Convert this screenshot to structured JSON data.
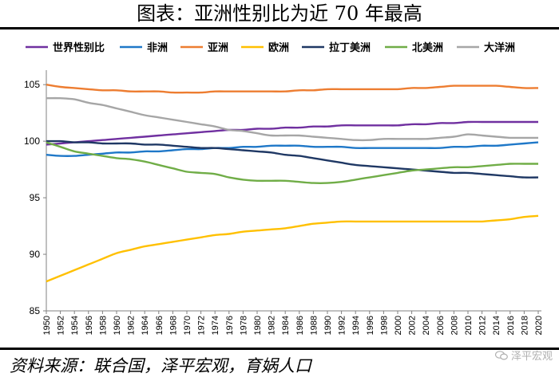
{
  "header": {
    "title": "图表：亚洲性别比为近 70 年最高"
  },
  "footer": {
    "source": "资料来源：联合国，泽平宏观，育娲人口",
    "watermark": "泽平宏观"
  },
  "chart_data": {
    "type": "line",
    "title": "图表：亚洲性别比为近 70 年最高",
    "xlabel": "",
    "ylabel": "",
    "ylim": [
      85,
      106
    ],
    "yticks": [
      85,
      90,
      95,
      100,
      105
    ],
    "x": [
      1950,
      1952,
      1954,
      1956,
      1958,
      1960,
      1962,
      1964,
      1966,
      1968,
      1970,
      1972,
      1974,
      1976,
      1978,
      1980,
      1982,
      1984,
      1986,
      1988,
      1990,
      1992,
      1994,
      1996,
      1998,
      2000,
      2002,
      2004,
      2006,
      2008,
      2010,
      2012,
      2014,
      2016,
      2018,
      2020
    ],
    "legend_position": "top",
    "grid": false,
    "series": [
      {
        "name": "世界性别比",
        "color": "#7030a0",
        "values": [
          99.7,
          99.8,
          99.9,
          100.0,
          100.1,
          100.2,
          100.3,
          100.4,
          100.5,
          100.6,
          100.7,
          100.8,
          100.9,
          101.0,
          101.0,
          101.1,
          101.1,
          101.2,
          101.2,
          101.3,
          101.3,
          101.4,
          101.4,
          101.4,
          101.4,
          101.4,
          101.5,
          101.5,
          101.6,
          101.6,
          101.7,
          101.7,
          101.7,
          101.7,
          101.7,
          101.7
        ]
      },
      {
        "name": "非洲",
        "color": "#1f78c8",
        "values": [
          98.8,
          98.7,
          98.7,
          98.8,
          98.9,
          99.0,
          99.0,
          99.1,
          99.1,
          99.2,
          99.3,
          99.3,
          99.4,
          99.4,
          99.5,
          99.5,
          99.6,
          99.6,
          99.6,
          99.5,
          99.5,
          99.5,
          99.4,
          99.4,
          99.4,
          99.4,
          99.4,
          99.4,
          99.4,
          99.5,
          99.5,
          99.6,
          99.6,
          99.7,
          99.8,
          99.9
        ]
      },
      {
        "name": "亚洲",
        "color": "#ed7d31",
        "values": [
          105.0,
          104.8,
          104.7,
          104.6,
          104.5,
          104.5,
          104.4,
          104.4,
          104.4,
          104.3,
          104.3,
          104.3,
          104.4,
          104.4,
          104.4,
          104.4,
          104.4,
          104.4,
          104.5,
          104.5,
          104.6,
          104.6,
          104.6,
          104.6,
          104.6,
          104.6,
          104.7,
          104.7,
          104.8,
          104.9,
          104.9,
          104.9,
          104.9,
          104.8,
          104.7,
          104.7
        ]
      },
      {
        "name": "欧洲",
        "color": "#ffc000",
        "values": [
          87.6,
          88.1,
          88.6,
          89.1,
          89.6,
          90.1,
          90.4,
          90.7,
          90.9,
          91.1,
          91.3,
          91.5,
          91.7,
          91.8,
          92.0,
          92.1,
          92.2,
          92.3,
          92.5,
          92.7,
          92.8,
          92.9,
          92.9,
          92.9,
          92.9,
          92.9,
          92.9,
          92.9,
          92.9,
          92.9,
          92.9,
          92.9,
          93.0,
          93.1,
          93.3,
          93.4
        ]
      },
      {
        "name": "拉丁美洲",
        "color": "#1f3864",
        "values": [
          100.0,
          100.0,
          99.9,
          99.9,
          99.8,
          99.8,
          99.8,
          99.7,
          99.7,
          99.6,
          99.5,
          99.4,
          99.4,
          99.3,
          99.2,
          99.1,
          99.0,
          98.8,
          98.7,
          98.5,
          98.3,
          98.1,
          97.9,
          97.8,
          97.7,
          97.6,
          97.5,
          97.4,
          97.3,
          97.2,
          97.2,
          97.1,
          97.0,
          96.9,
          96.8,
          96.8
        ]
      },
      {
        "name": "北美洲",
        "color": "#70ad47",
        "values": [
          99.9,
          99.5,
          99.1,
          98.9,
          98.7,
          98.5,
          98.4,
          98.2,
          97.9,
          97.6,
          97.3,
          97.2,
          97.1,
          96.8,
          96.6,
          96.5,
          96.5,
          96.5,
          96.4,
          96.3,
          96.3,
          96.4,
          96.6,
          96.8,
          97.0,
          97.2,
          97.4,
          97.5,
          97.6,
          97.7,
          97.7,
          97.8,
          97.9,
          98.0,
          98.0,
          98.0
        ]
      },
      {
        "name": "大洋洲",
        "color": "#a6a6a6",
        "values": [
          103.8,
          103.8,
          103.7,
          103.4,
          103.2,
          102.9,
          102.6,
          102.3,
          102.1,
          101.9,
          101.7,
          101.5,
          101.3,
          101.0,
          100.9,
          100.7,
          100.5,
          100.5,
          100.5,
          100.4,
          100.3,
          100.2,
          100.1,
          100.1,
          100.2,
          100.2,
          100.2,
          100.2,
          100.3,
          100.4,
          100.6,
          100.5,
          100.4,
          100.3,
          100.3,
          100.3
        ]
      }
    ]
  }
}
